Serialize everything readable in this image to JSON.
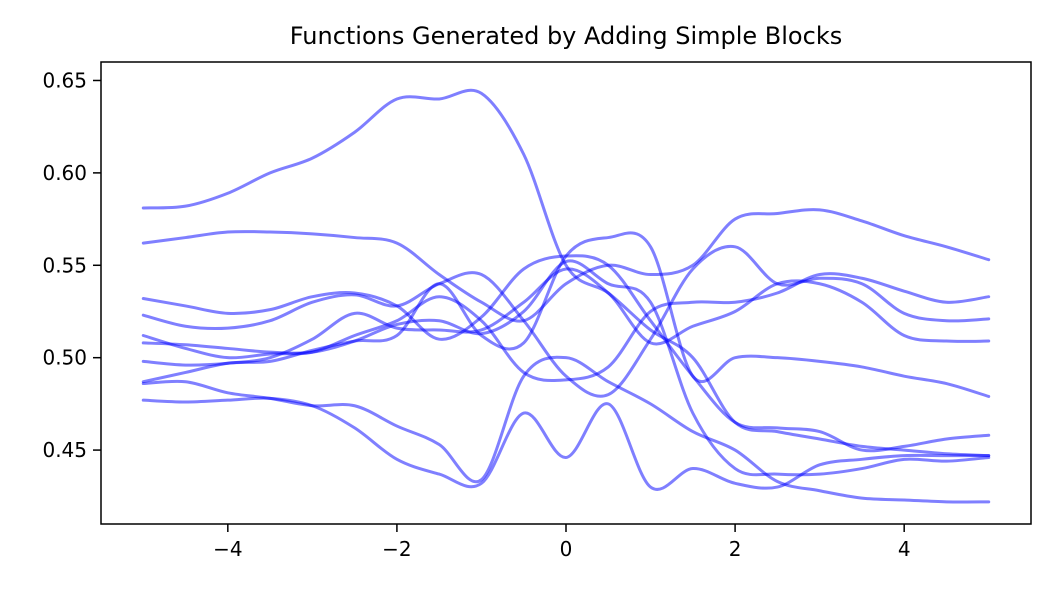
{
  "chart_data": {
    "type": "line",
    "title": "Functions Generated by Adding Simple Blocks",
    "xlabel": "",
    "ylabel": "",
    "xlim": [
      -5.5,
      5.5
    ],
    "ylim": [
      0.41,
      0.66
    ],
    "x_ticks": [
      -4,
      -2,
      0,
      2,
      4
    ],
    "x_tick_labels": [
      "−4",
      "−2",
      "0",
      "2",
      "4"
    ],
    "y_ticks": [
      0.45,
      0.5,
      0.55,
      0.6,
      0.65
    ],
    "y_tick_labels": [
      "0.45",
      "0.50",
      "0.55",
      "0.60",
      "0.65"
    ],
    "grid": false,
    "line_color": "#0000ff",
    "line_opacity": 0.5,
    "x": [
      -5,
      -4.5,
      -4,
      -3.5,
      -3,
      -2.5,
      -2,
      -1.5,
      -1,
      -0.5,
      0,
      0.5,
      1,
      1.5,
      2,
      2.5,
      3,
      3.5,
      4,
      4.5,
      5
    ],
    "series": [
      {
        "values": [
          0.581,
          0.582,
          0.589,
          0.6,
          0.608,
          0.622,
          0.64,
          0.64,
          0.643,
          0.61,
          0.55,
          0.535,
          0.515,
          0.5,
          0.465,
          0.46,
          0.456,
          0.452,
          0.45,
          0.448,
          0.447
        ]
      },
      {
        "values": [
          0.562,
          0.565,
          0.568,
          0.568,
          0.567,
          0.565,
          0.562,
          0.545,
          0.53,
          0.52,
          0.54,
          0.55,
          0.545,
          0.55,
          0.575,
          0.578,
          0.58,
          0.574,
          0.566,
          0.56,
          0.553
        ]
      },
      {
        "values": [
          0.532,
          0.528,
          0.524,
          0.526,
          0.533,
          0.535,
          0.528,
          0.51,
          0.522,
          0.548,
          0.555,
          0.55,
          0.52,
          0.49,
          0.465,
          0.462,
          0.46,
          0.45,
          0.452,
          0.456,
          0.458
        ]
      },
      {
        "values": [
          0.523,
          0.517,
          0.516,
          0.52,
          0.53,
          0.534,
          0.528,
          0.54,
          0.545,
          0.52,
          0.49,
          0.48,
          0.51,
          0.548,
          0.56,
          0.54,
          0.543,
          0.54,
          0.524,
          0.52,
          0.521
        ]
      },
      {
        "values": [
          0.512,
          0.505,
          0.5,
          0.502,
          0.503,
          0.512,
          0.52,
          0.533,
          0.52,
          0.492,
          0.488,
          0.495,
          0.525,
          0.53,
          0.53,
          0.535,
          0.545,
          0.543,
          0.536,
          0.53,
          0.533
        ]
      },
      {
        "values": [
          0.508,
          0.507,
          0.505,
          0.503,
          0.503,
          0.509,
          0.518,
          0.52,
          0.513,
          0.525,
          0.552,
          0.54,
          0.53,
          0.47,
          0.44,
          0.437,
          0.437,
          0.44,
          0.445,
          0.444,
          0.446
        ]
      },
      {
        "values": [
          0.498,
          0.496,
          0.497,
          0.5,
          0.51,
          0.524,
          0.516,
          0.515,
          0.515,
          0.53,
          0.548,
          0.535,
          0.508,
          0.517,
          0.525,
          0.54,
          0.54,
          0.53,
          0.512,
          0.509,
          0.509
        ]
      },
      {
        "values": [
          0.487,
          0.492,
          0.497,
          0.498,
          0.504,
          0.509,
          0.512,
          0.54,
          0.512,
          0.508,
          0.555,
          0.565,
          0.56,
          0.49,
          0.5,
          0.5,
          0.498,
          0.495,
          0.49,
          0.486,
          0.479
        ]
      },
      {
        "values": [
          0.486,
          0.487,
          0.481,
          0.478,
          0.474,
          0.474,
          0.463,
          0.453,
          0.434,
          0.49,
          0.5,
          0.487,
          0.475,
          0.46,
          0.45,
          0.433,
          0.428,
          0.424,
          0.423,
          0.422,
          0.422
        ]
      },
      {
        "values": [
          0.477,
          0.476,
          0.477,
          0.478,
          0.474,
          0.462,
          0.445,
          0.437,
          0.432,
          0.47,
          0.446,
          0.475,
          0.43,
          0.44,
          0.432,
          0.43,
          0.442,
          0.445,
          0.447,
          0.447,
          0.447
        ]
      }
    ]
  }
}
